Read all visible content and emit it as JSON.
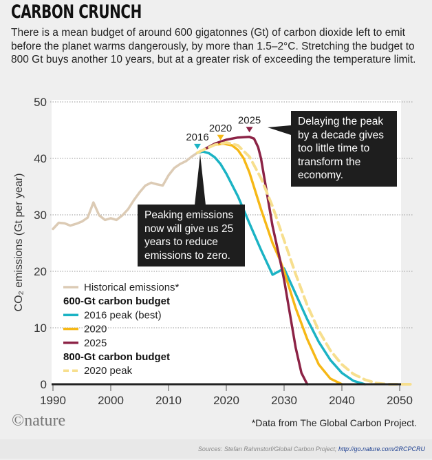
{
  "header": {
    "title": "CARBON CRUNCH",
    "subtitle": "There is a mean budget of around 600 gigatonnes (Gt) of carbon dioxide left to emit before the planet warms dangerously, by more than 1.5–2°C. Stretching the budget to 800 Gt buys another 10 years, but at a greater risk of exceeding the temperature limit."
  },
  "callouts": {
    "early": "Peaking emissions now will give us 25 years to reduce emissions to zero.",
    "late": "Delaying the peak by a decade gives too little time to transform the economy."
  },
  "footer": {
    "logo": "©nature",
    "note": "*Data from The Global Carbon Project.",
    "sources": "Sources: Stefan Rahmstorf/Global Carbon Project;",
    "link": "http://go.nature.com/2RCPCRU"
  },
  "chart_data": {
    "type": "line",
    "ylabel": "CO₂ emissions (Gt per year)",
    "xlim": [
      1990,
      2050
    ],
    "ylim": [
      0,
      50
    ],
    "xticks": [
      1990,
      2000,
      2010,
      2020,
      2030,
      2040,
      2050
    ],
    "yticks": [
      0,
      10,
      20,
      30,
      40,
      50
    ],
    "grid": "horizontal dotted",
    "legend_placement": "bottom-left",
    "legend": {
      "historical": "Historical emissions*",
      "group600": "600-Gt carbon budget",
      "group800": "800-Gt carbon budget"
    },
    "peak_markers": [
      {
        "label": "2016",
        "year": 2015,
        "value": 41.6,
        "color": "#1bb3c4"
      },
      {
        "label": "2020",
        "year": 2019,
        "value": 43.2,
        "color": "#f6b816"
      },
      {
        "label": "2025",
        "year": 2024,
        "value": 44.6,
        "color": "#8c2346"
      }
    ],
    "series": [
      {
        "name": "Historical emissions*",
        "color": "#dccbb5",
        "dashed": false,
        "x": [
          1990,
          1991,
          1992,
          1993,
          1994,
          1995,
          1996,
          1997,
          1998,
          1999,
          2000,
          2001,
          2002,
          2003,
          2004,
          2005,
          2006,
          2007,
          2008,
          2009,
          2010,
          2011,
          2012,
          2013,
          2014,
          2015,
          2016
        ],
        "y": [
          27.5,
          28.6,
          28.5,
          28.1,
          28.4,
          28.8,
          29.5,
          32.2,
          29.9,
          29.1,
          29.4,
          29.1,
          29.9,
          31,
          32.6,
          34,
          35.2,
          35.7,
          35.4,
          35.2,
          37,
          38.3,
          39,
          39.5,
          40.3,
          41,
          41.4
        ]
      },
      {
        "name": "2016 peak (best)",
        "color": "#1bb3c4",
        "dashed": false,
        "x": [
          2015,
          2016,
          2017,
          2018,
          2019,
          2020,
          2022,
          2024,
          2026,
          2028,
          2030,
          2032,
          2034,
          2036,
          2038,
          2040,
          2042,
          2044
        ],
        "y": [
          41,
          41.2,
          40.9,
          40.2,
          39,
          37.3,
          33.3,
          28.5,
          23.8,
          19.4,
          20.5,
          16,
          11.5,
          7.5,
          4.3,
          2,
          0.6,
          0
        ]
      },
      {
        "name": "2020",
        "color": "#f6b816",
        "dashed": false,
        "x": [
          2015,
          2016,
          2018,
          2019.5,
          2021,
          2022,
          2023,
          2024,
          2026,
          2028,
          2029.3,
          2030,
          2032,
          2034,
          2036,
          2038,
          2040
        ],
        "y": [
          41,
          41.5,
          42.4,
          42.6,
          42.3,
          41.5,
          40,
          37.5,
          31,
          25,
          22,
          20,
          13.5,
          8,
          3.5,
          1,
          0
        ]
      },
      {
        "name": "2025",
        "color": "#8c2346",
        "dashed": false,
        "x": [
          2015,
          2016,
          2018,
          2020,
          2022,
          2024,
          2024.8,
          2025.5,
          2026,
          2027,
          2028,
          2029.3,
          2030,
          2031,
          2032,
          2033,
          2034
        ],
        "y": [
          41,
          41.5,
          42.6,
          43.3,
          43.7,
          43.8,
          43.5,
          42,
          40,
          34,
          28,
          22,
          18.5,
          12.5,
          6.5,
          2,
          0
        ]
      },
      {
        "name": "2020 peak",
        "color": "#f7df8e",
        "dashed": true,
        "x": [
          2015,
          2016,
          2018,
          2020,
          2022,
          2024,
          2026,
          2028,
          2030,
          2032,
          2034,
          2036,
          2038,
          2040,
          2042,
          2044,
          2046,
          2048,
          2052
        ],
        "y": [
          41,
          41.5,
          42.4,
          42.8,
          42.3,
          40.3,
          36.5,
          31.5,
          25.5,
          19.5,
          14,
          9.5,
          6,
          3.5,
          1.8,
          0.8,
          0.2,
          0,
          0
        ]
      }
    ]
  }
}
